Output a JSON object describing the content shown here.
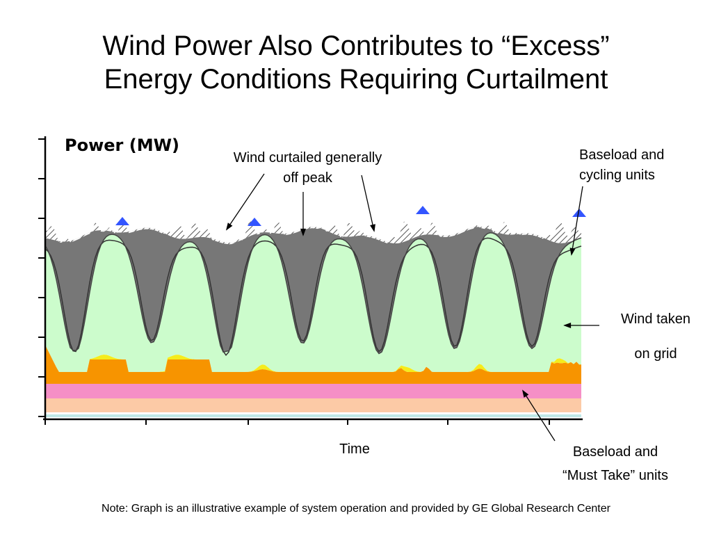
{
  "slide": {
    "title_line1": "Wind Power Also Contributes to “Excess”",
    "title_line2": "Energy Conditions Requiring Curtailment",
    "note": "Note: Graph is an illustrative example of system operation and provided by GE Global Research Center"
  },
  "chart_data": {
    "type": "area",
    "title": "Power (MW)",
    "xlabel": "Time",
    "ylabel": "",
    "grid": false,
    "annotations": {
      "curtailed": [
        "Wind curtailed generally",
        "off peak"
      ],
      "cycling": [
        "Baseload and",
        "cycling units"
      ],
      "wind_taken": [
        "Wind taken",
        "on grid"
      ],
      "must_take": [
        "Baseload and",
        "“Must Take” units"
      ]
    },
    "colors": {
      "base_teal": "#bfe8e6",
      "base_peach": "#fccaa6",
      "base_pink": "#f58fc6",
      "orange": "#f79400",
      "yellow": "#f5ec1c",
      "wind_taken": "#ccfccc",
      "cycling": "#777777",
      "curtailed_hatch": "#555555",
      "peak_blue": "#3355ff"
    }
  }
}
